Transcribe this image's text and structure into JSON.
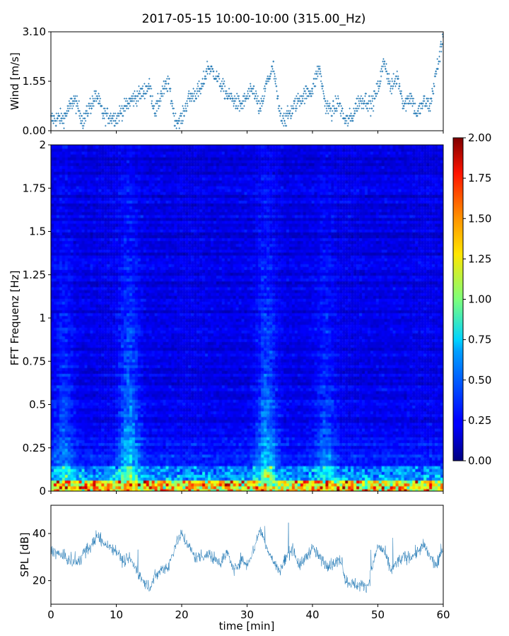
{
  "chart_data": {
    "title": "2017-05-15 10:00-10:00 (315.00_Hz)",
    "colors": {
      "series": "#1f77b4",
      "axes": "#000000",
      "colormap": "jet"
    },
    "wind": {
      "type": "scatter",
      "ylabel": "Wind [m/s]",
      "xlim": [
        0,
        60
      ],
      "ylim": [
        0,
        3.1
      ],
      "yticks": [
        0.0,
        1.55,
        3.1
      ],
      "ytick_labels": [
        "0.00",
        "1.55",
        "3.10"
      ],
      "grid": false,
      "points_per_minute": 20,
      "trend_points": [
        [
          0,
          0.35
        ],
        [
          2,
          0.4
        ],
        [
          3.5,
          1.0
        ],
        [
          5,
          0.3
        ],
        [
          6,
          0.8
        ],
        [
          7,
          1.1
        ],
        [
          8,
          0.5
        ],
        [
          10,
          0.4
        ],
        [
          12,
          0.9
        ],
        [
          14,
          1.2
        ],
        [
          15,
          1.4
        ],
        [
          16,
          0.6
        ],
        [
          17,
          1.2
        ],
        [
          18,
          1.5
        ],
        [
          19,
          0.3
        ],
        [
          20,
          0.35
        ],
        [
          21,
          1.0
        ],
        [
          23,
          1.3
        ],
        [
          24,
          2.0
        ],
        [
          25,
          1.8
        ],
        [
          27,
          1.1
        ],
        [
          29,
          0.8
        ],
        [
          31,
          1.3
        ],
        [
          32,
          0.6
        ],
        [
          33,
          1.5
        ],
        [
          34,
          2.0
        ],
        [
          35,
          0.5
        ],
        [
          36,
          0.4
        ],
        [
          38,
          1.0
        ],
        [
          40,
          1.3
        ],
        [
          41,
          2.0
        ],
        [
          42,
          0.8
        ],
        [
          43,
          0.6
        ],
        [
          44,
          0.9
        ],
        [
          45,
          0.3
        ],
        [
          46,
          0.4
        ],
        [
          47,
          0.9
        ],
        [
          48,
          1.0
        ],
        [
          49,
          0.8
        ],
        [
          50,
          1.3
        ],
        [
          51,
          2.2
        ],
        [
          52,
          1.3
        ],
        [
          53,
          1.7
        ],
        [
          54,
          0.8
        ],
        [
          55,
          1.1
        ],
        [
          56,
          0.5
        ],
        [
          57,
          0.9
        ],
        [
          58,
          0.8
        ],
        [
          59,
          1.9
        ],
        [
          59.7,
          2.6
        ],
        [
          60,
          3.1
        ]
      ],
      "noise": 0.45
    },
    "spectrogram": {
      "type": "heatmap",
      "ylabel": "FFT Frequenz [Hz]",
      "xlim": [
        0,
        60
      ],
      "ylim": [
        0,
        2
      ],
      "yticks": [
        0,
        0.25,
        0.5,
        0.75,
        1,
        1.25,
        1.5,
        1.75,
        2
      ],
      "ytick_labels": [
        "0",
        "0.25",
        "0.5",
        "0.75",
        "1",
        "1.25",
        "1.5",
        "1.75",
        "2"
      ],
      "colorbar": {
        "range": [
          0,
          2
        ],
        "ticks": [
          0,
          0.25,
          0.5,
          0.75,
          1.0,
          1.25,
          1.5,
          1.75,
          2.0
        ],
        "tick_labels": [
          "0.00",
          "0.25",
          "0.50",
          "0.75",
          "1.00",
          "1.25",
          "1.50",
          "1.75",
          "2.00"
        ]
      },
      "n_time": 140,
      "n_freq": 120,
      "baseline": 0.2,
      "low_freq_band": {
        "freq_max": 0.06,
        "level": 1.6
      },
      "bright_columns": [
        {
          "minute": 12,
          "level": 0.55
        },
        {
          "minute": 33,
          "level": 0.5
        },
        {
          "minute": 42,
          "level": 0.3
        },
        {
          "minute": 2,
          "level": 0.3
        }
      ]
    },
    "spl": {
      "type": "line",
      "ylabel": "SPL [dB]",
      "xlabel": "time [min]",
      "xlim": [
        0,
        60
      ],
      "ylim": [
        10,
        52
      ],
      "yticks": [
        20,
        40
      ],
      "ytick_labels": [
        "20",
        "40"
      ],
      "xticks": [
        0,
        10,
        20,
        30,
        40,
        50,
        60
      ],
      "xtick_labels": [
        "0",
        "10",
        "20",
        "30",
        "40",
        "50",
        "60"
      ],
      "trend_points": [
        [
          0,
          33
        ],
        [
          2,
          30
        ],
        [
          4,
          27
        ],
        [
          5,
          32
        ],
        [
          6,
          34
        ],
        [
          7,
          39
        ],
        [
          8,
          36
        ],
        [
          10,
          33
        ],
        [
          11,
          28
        ],
        [
          12,
          30
        ],
        [
          13,
          25
        ],
        [
          14,
          20
        ],
        [
          15,
          17
        ],
        [
          16,
          22
        ],
        [
          17,
          25
        ],
        [
          18,
          26
        ],
        [
          19,
          35
        ],
        [
          20,
          40
        ],
        [
          21,
          35
        ],
        [
          22,
          30
        ],
        [
          24,
          31
        ],
        [
          26,
          28
        ],
        [
          27,
          32
        ],
        [
          28,
          24
        ],
        [
          29,
          29
        ],
        [
          30,
          27
        ],
        [
          31,
          33
        ],
        [
          32,
          42
        ],
        [
          33,
          34
        ],
        [
          34,
          28
        ],
        [
          35,
          24
        ],
        [
          36,
          30
        ],
        [
          37,
          34
        ],
        [
          38,
          26
        ],
        [
          39,
          30
        ],
        [
          40,
          34
        ],
        [
          41,
          30
        ],
        [
          42,
          27
        ],
        [
          43,
          27
        ],
        [
          44.5,
          29
        ],
        [
          45,
          20
        ],
        [
          47,
          18
        ],
        [
          48.5,
          18
        ],
        [
          49,
          24
        ],
        [
          50,
          35
        ],
        [
          51,
          32
        ],
        [
          52,
          24
        ],
        [
          53,
          28
        ],
        [
          54,
          30
        ],
        [
          55,
          30
        ],
        [
          56,
          32
        ],
        [
          57,
          35
        ],
        [
          58,
          30
        ],
        [
          59,
          26
        ],
        [
          60,
          34
        ]
      ],
      "noise": 4.5,
      "samples": 1200
    }
  }
}
